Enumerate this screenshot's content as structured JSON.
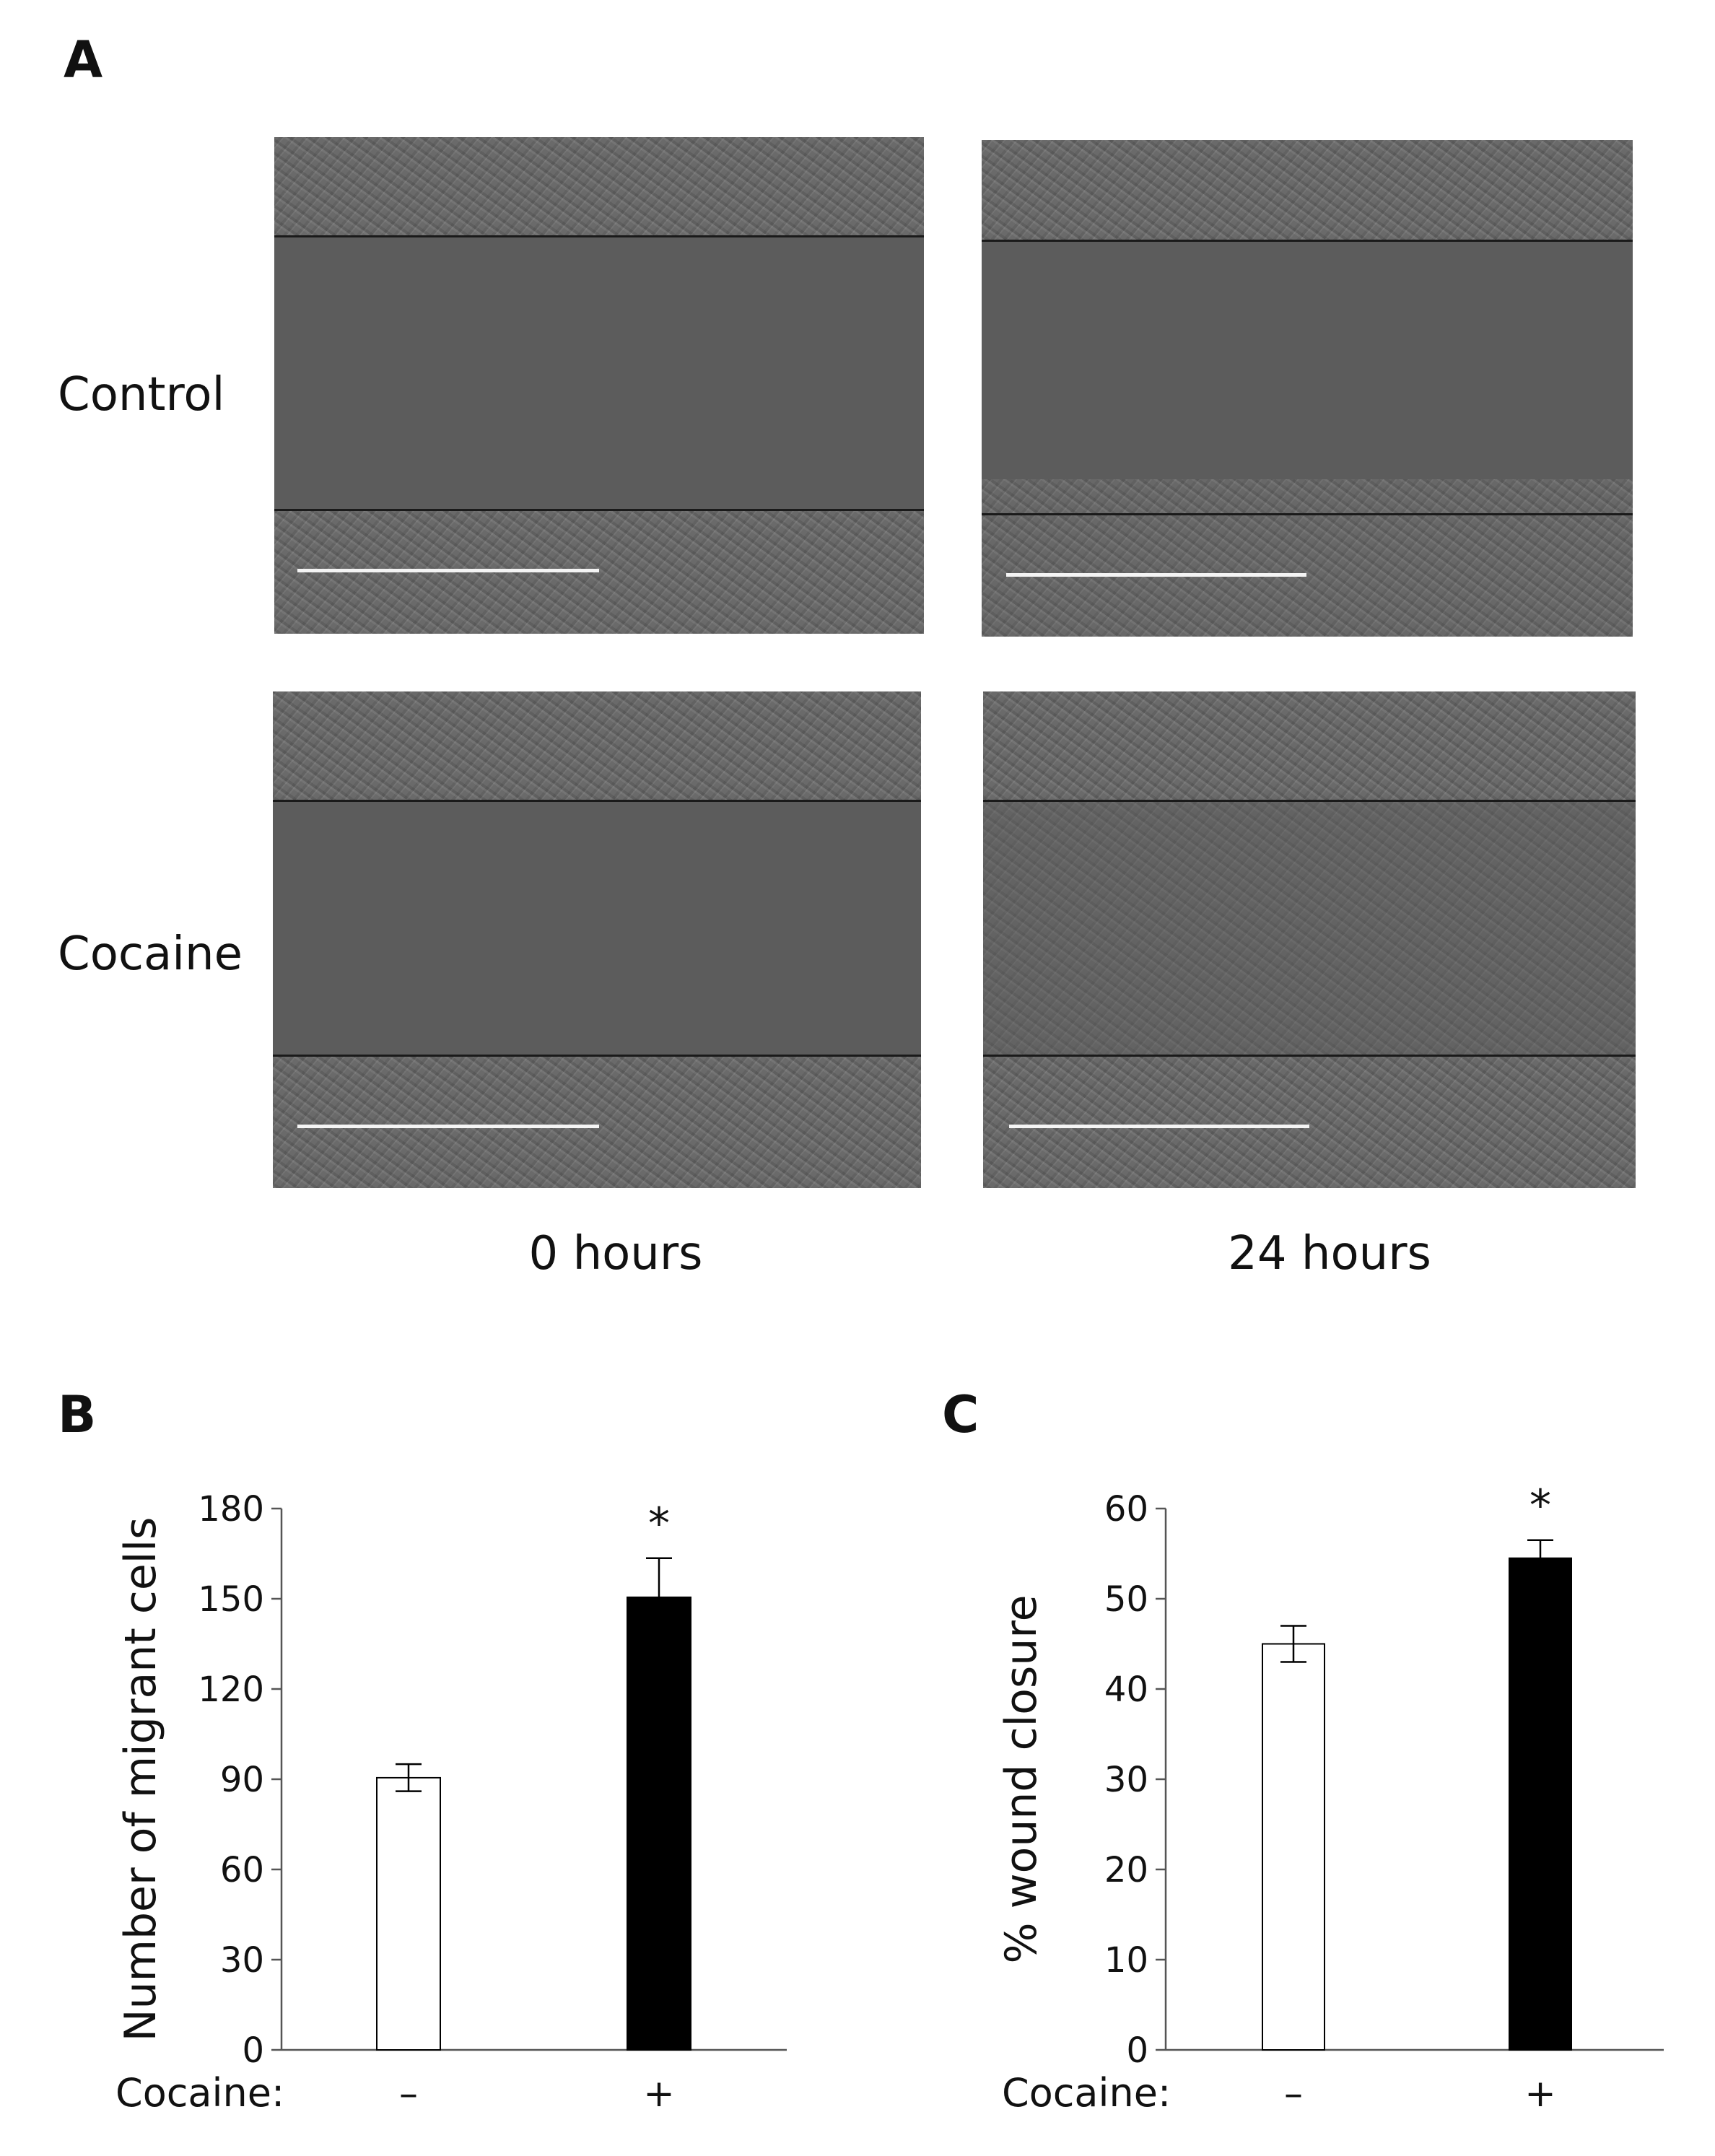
{
  "panels": {
    "a_letter": "A",
    "b_letter": "B",
    "c_letter": "C"
  },
  "micrographs": {
    "row_labels": [
      "Control",
      "Cocaine"
    ],
    "col_labels": [
      "0 hours",
      "24 hours"
    ]
  },
  "chart_data": [
    {
      "panel": "B",
      "type": "bar",
      "categories": [
        "–",
        "+"
      ],
      "category_axis_label": "Cocaine:",
      "values": [
        90.5,
        150.5
      ],
      "errors": [
        4.5,
        13
      ],
      "bar_colors": [
        "#ffffff",
        "#000000"
      ],
      "ylabel": "Number of migrant cells",
      "ylim": [
        0,
        180
      ],
      "yticks": [
        0,
        30,
        60,
        90,
        120,
        150,
        180
      ],
      "annotations": [
        {
          "category": "+",
          "text": "*"
        }
      ],
      "grid": false,
      "legend": "none"
    },
    {
      "panel": "C",
      "type": "bar",
      "categories": [
        "–",
        "+"
      ],
      "category_axis_label": "Cocaine:",
      "values": [
        45,
        54.5
      ],
      "errors": [
        2,
        2
      ],
      "bar_colors": [
        "#ffffff",
        "#000000"
      ],
      "ylabel": "% wound closure",
      "ylim": [
        0,
        60
      ],
      "yticks": [
        0,
        10,
        20,
        30,
        40,
        50,
        60
      ],
      "annotations": [
        {
          "category": "+",
          "text": "*"
        }
      ],
      "grid": false,
      "legend": "none"
    }
  ]
}
